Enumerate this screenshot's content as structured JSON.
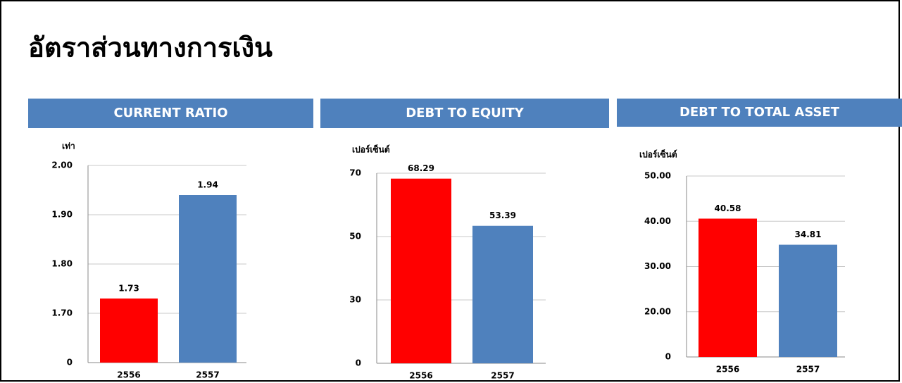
{
  "title": "อัตราส่วนทางการเงิน",
  "chart_data": [
    {
      "type": "bar",
      "title": "CURRENT RATIO",
      "y_label": "เท่า",
      "categories": [
        "2556",
        "2557"
      ],
      "values": [
        1.73,
        1.94
      ],
      "colors": [
        "#ff0000",
        "#4f81bd"
      ],
      "ylim": [
        0,
        2.0
      ],
      "yticks": [
        0,
        {
          "value": 1.7,
          "label": "1.70"
        },
        {
          "value": 1.8,
          "label": "1.80"
        },
        {
          "value": 1.9,
          "label": "1.90"
        },
        {
          "value": 2.0,
          "label": "2.00"
        }
      ],
      "grid": true
    },
    {
      "type": "bar",
      "title": "DEBT TO EQUITY",
      "y_label": "เปอร์เซ็นต์",
      "categories": [
        "2556",
        "2557"
      ],
      "values": [
        68.29,
        53.39
      ],
      "colors": [
        "#ff0000",
        "#4f81bd"
      ],
      "ylim": [
        0,
        70
      ],
      "yticks": [
        0,
        30,
        50,
        70
      ],
      "grid": true
    },
    {
      "type": "bar",
      "title": "DEBT TO TOTAL ASSET",
      "y_label": "เปอร์เซ็นต์",
      "categories": [
        "2556",
        "2557"
      ],
      "values": [
        40.58,
        34.81
      ],
      "colors": [
        "#ff0000",
        "#4f81bd"
      ],
      "ylim": [
        0,
        50
      ],
      "yticks": [
        0,
        {
          "value": 20,
          "label": "20.00"
        },
        {
          "value": 30,
          "label": "30.00"
        },
        {
          "value": 40,
          "label": "40.00"
        },
        {
          "value": 50,
          "label": "50.00"
        }
      ],
      "grid": true
    }
  ]
}
